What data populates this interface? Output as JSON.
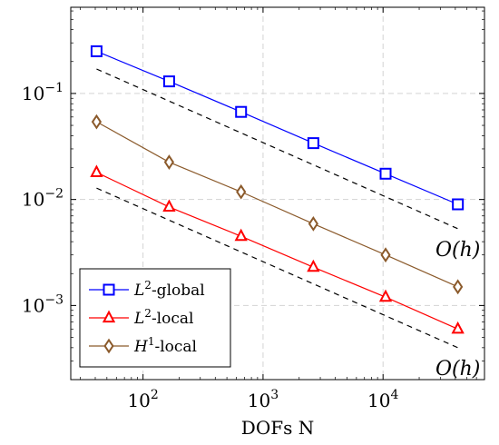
{
  "chart_data": {
    "type": "line",
    "xlabel": "DOFs N",
    "ylabel": "",
    "title": "",
    "x_scale": "log",
    "y_scale": "log",
    "xlim": [
      25,
      70000
    ],
    "ylim": [
      0.0002,
      0.65
    ],
    "grid": true,
    "legend_position": "bottom-left",
    "x_ticks": [
      {
        "value": 100,
        "label": "10^2"
      },
      {
        "value": 1000,
        "label": "10^3"
      },
      {
        "value": 10000,
        "label": "10^4"
      }
    ],
    "y_ticks": [
      {
        "value": 0.1,
        "label": "10^-1"
      },
      {
        "value": 0.01,
        "label": "10^-2"
      },
      {
        "value": 0.001,
        "label": "10^-3"
      }
    ],
    "x": [
      41,
      165,
      656,
      2625,
      10500,
      42000
    ],
    "series": [
      {
        "name": "L2-global",
        "legend_base": "L",
        "legend_sup": "2",
        "legend_rest": "-global",
        "color": "#0000ff",
        "marker": "square",
        "values": [
          0.25,
          0.13,
          0.067,
          0.034,
          0.0175,
          0.009
        ]
      },
      {
        "name": "L2-local",
        "legend_base": "L",
        "legend_sup": "2",
        "legend_rest": "-local",
        "color": "#ff0000",
        "marker": "triangle",
        "values": [
          0.018,
          0.0085,
          0.0045,
          0.0023,
          0.0012,
          0.0006
        ]
      },
      {
        "name": "H1-local",
        "legend_base": "H",
        "legend_sup": "1",
        "legend_rest": "-local",
        "color": "#8b5a2b",
        "marker": "diamond",
        "values": [
          0.054,
          0.0225,
          0.0118,
          0.0059,
          0.003,
          0.0015
        ]
      }
    ],
    "reference_lines": [
      {
        "label": "O(h)",
        "style": "dashed",
        "color": "#000000",
        "x": [
          41,
          42000
        ],
        "y": [
          0.17,
          0.0053
        ]
      },
      {
        "label": "O(h)",
        "style": "dashed",
        "color": "#000000",
        "x": [
          41,
          42000
        ],
        "y": [
          0.0128,
          0.0004
        ]
      }
    ]
  }
}
